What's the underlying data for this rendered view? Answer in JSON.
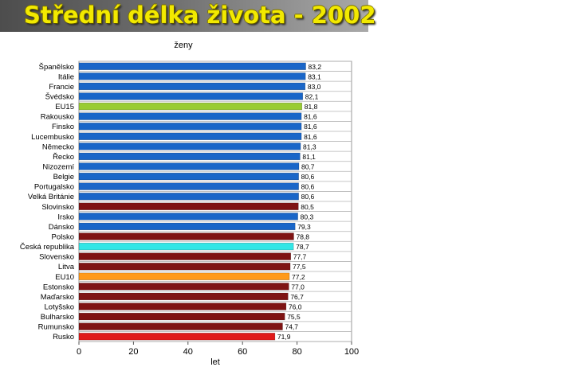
{
  "header": {
    "title": "Střední délka života - 2002"
  },
  "chart_data": {
    "type": "bar",
    "orientation": "horizontal",
    "title": "ženy",
    "xlabel": "let",
    "ylabel": "",
    "xlim": [
      0,
      100
    ],
    "xticks": [
      "0",
      "20",
      "40",
      "60",
      "80",
      "100"
    ],
    "grid": true,
    "legend": "none",
    "categories": [
      "Španělsko",
      "Itálie",
      "Francie",
      "Švédsko",
      "EU15",
      "Rakousko",
      "Finsko",
      "Lucembusko",
      "Německo",
      "Řecko",
      "Nizozemí",
      "Belgie",
      "Portugalsko",
      "Velká Británie",
      "Slovinsko",
      "Irsko",
      "Dánsko",
      "Polsko",
      "Česká republika",
      "Slovensko",
      "Litva",
      "EU10",
      "Estonsko",
      "Maďarsko",
      "Lotyšsko",
      "Bulharsko",
      "Rumunsko",
      "Rusko"
    ],
    "values": [
      83.2,
      83.1,
      83.0,
      82.1,
      81.8,
      81.6,
      81.6,
      81.6,
      81.3,
      81.1,
      80.7,
      80.6,
      80.6,
      80.6,
      80.5,
      80.3,
      79.3,
      78.8,
      78.7,
      77.7,
      77.5,
      77.2,
      77.0,
      76.7,
      76.0,
      75.5,
      74.7,
      71.9
    ],
    "value_labels": [
      "83,2",
      "83,1",
      "83,0",
      "82,1",
      "81,8",
      "81,6",
      "81,6",
      "81,6",
      "81,3",
      "81,1",
      "80,7",
      "80,6",
      "80,6",
      "80,6",
      "80,5",
      "80,3",
      "79,3",
      "78,8",
      "78,7",
      "77,7",
      "77,5",
      "77,2",
      "77,0",
      "76,7",
      "76,0",
      "75,5",
      "74,7",
      "71,9"
    ],
    "colors": [
      "#1a66c8",
      "#1a66c8",
      "#1a66c8",
      "#1a66c8",
      "#99cc33",
      "#1a66c8",
      "#1a66c8",
      "#1a66c8",
      "#1a66c8",
      "#1a66c8",
      "#1a66c8",
      "#1a66c8",
      "#1a66c8",
      "#1a66c8",
      "#7f1414",
      "#1a66c8",
      "#1a66c8",
      "#7f1414",
      "#33e6e6",
      "#7f1414",
      "#7f1414",
      "#ff9a1a",
      "#7f1414",
      "#7f1414",
      "#7f1414",
      "#7f1414",
      "#7f1414",
      "#e01a1a"
    ]
  }
}
